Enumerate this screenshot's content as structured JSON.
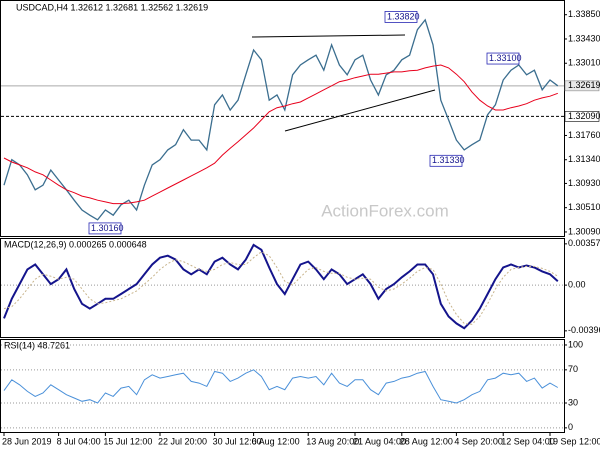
{
  "chart_data": [
    {
      "type": "line",
      "title": "USDCAD,H4 1.32612 1.32681 1.32562 1.32619",
      "watermark": "ActionForex.com",
      "categories": [
        "28 Jun 2019",
        null,
        null,
        null,
        null,
        null,
        null,
        "8 Jul 04:00",
        null,
        null,
        null,
        null,
        null,
        "15 Jul 12:00",
        null,
        null,
        null,
        null,
        null,
        null,
        "22 Jul 20:00",
        null,
        null,
        null,
        null,
        null,
        null,
        "30 Jul 12:00",
        null,
        null,
        null,
        null,
        "6 Aug 12:00",
        null,
        null,
        null,
        null,
        null,
        null,
        "13 Aug 20:00",
        null,
        null,
        null,
        null,
        null,
        "21 Aug 04:00",
        null,
        null,
        null,
        null,
        null,
        "28 Aug 12:00",
        null,
        null,
        null,
        null,
        null,
        null,
        "4 Sep 20:00",
        null,
        null,
        null,
        null,
        null,
        "12 Sep 04:00",
        null,
        null,
        null,
        null,
        null,
        "19 Sep 12:00",
        null
      ],
      "series": [
        {
          "color": "#3b6e8f",
          "values": [
            1.309,
            1.3134,
            1.3125,
            1.3108,
            1.3082,
            1.309,
            1.3116,
            1.3099,
            1.3082,
            1.3064,
            1.3047,
            1.3038,
            1.303,
            1.3047,
            1.3038,
            1.3056,
            1.3064,
            1.3047,
            1.309,
            1.3125,
            1.3134,
            1.3151,
            1.316,
            1.3186,
            1.3168,
            1.3168,
            1.3151,
            1.3229,
            1.3246,
            1.322,
            1.3237,
            1.3281,
            1.3324,
            1.3307,
            1.3237,
            1.3246,
            1.322,
            1.3281,
            1.3298,
            1.3307,
            1.3315,
            1.3289,
            1.3333,
            1.3298,
            1.3281,
            1.3307,
            1.3315,
            1.3272,
            1.3246,
            1.3281,
            1.3289,
            1.3307,
            1.3315,
            1.3359,
            1.3376,
            1.3333,
            1.3237,
            1.3203,
            1.3168,
            1.3151,
            1.316,
            1.3168,
            1.3212,
            1.3229,
            1.3272,
            1.3289,
            1.3298,
            1.3281,
            1.3289,
            1.3255,
            1.3272,
            1.3262
          ]
        },
        {
          "color": "#e8001c",
          "values": [
            1.3137,
            1.313,
            1.3125,
            1.312,
            1.3113,
            1.3108,
            1.3099,
            1.309,
            1.3082,
            1.3077,
            1.3071,
            1.3068,
            1.3064,
            1.3061,
            1.3058,
            1.3058,
            1.3059,
            1.3061,
            1.3064,
            1.3071,
            1.3078,
            1.3085,
            1.3092,
            1.3099,
            1.3106,
            1.3113,
            1.312,
            1.3128,
            1.3142,
            1.3154,
            1.3165,
            1.3177,
            1.3189,
            1.3203,
            1.3217,
            1.3224,
            1.3227,
            1.3231,
            1.3234,
            1.3241,
            1.3248,
            1.3255,
            1.3262,
            1.3269,
            1.3272,
            1.3276,
            1.3279,
            1.3282,
            1.3282,
            1.3284,
            1.3286,
            1.3286,
            1.3288,
            1.3289,
            1.3293,
            1.3296,
            1.3298,
            1.3293,
            1.3282,
            1.3269,
            1.3251,
            1.3237,
            1.3227,
            1.322,
            1.322,
            1.3224,
            1.3227,
            1.3231,
            1.3237,
            1.3241,
            1.3244,
            1.3249
          ]
        }
      ],
      "ylim": [
        1.3002,
        1.3407
      ],
      "yticks": [
        {
          "value": 1.3385,
          "label": "1.33850"
        },
        {
          "value": 1.3343,
          "label": "1.33430"
        },
        {
          "value": 1.3301,
          "label": "1.33010"
        },
        {
          "value": 1.3176,
          "label": "1.31760"
        },
        {
          "value": 1.3134,
          "label": "1.31340"
        },
        {
          "value": 1.3093,
          "label": "1.30930"
        },
        {
          "value": 1.3051,
          "label": "1.30510"
        },
        {
          "value": 1.3009,
          "label": "1.30090"
        }
      ],
      "last_price": {
        "value": 1.32619,
        "label": "1.32619"
      },
      "hline": {
        "value": 1.3209,
        "label": "1.32090"
      },
      "annotations": [
        {
          "value": 1.3382,
          "label": "1.33820"
        },
        {
          "value": 1.331,
          "label": "1.33100"
        },
        {
          "value": 1.3133,
          "label": "1.31330"
        },
        {
          "value": 1.3016,
          "label": "1.30160"
        }
      ]
    },
    {
      "type": "line",
      "title": "MACD(12,26,9) 0.000265 0.000648",
      "series": [
        {
          "color": "#14148c",
          "values": [
            -0.00289,
            -0.00119,
            9e-05,
            0.00136,
            0.00179,
            0.00094,
            9e-05,
            0.00051,
            0.00136,
            -0.00034,
            -0.00162,
            -0.00204,
            -0.00162,
            -0.00119,
            -0.00119,
            -0.00077,
            -0.00034,
            9e-05,
            0.00094,
            0.00179,
            0.00238,
            0.00255,
            0.00221,
            0.00136,
            0.00094,
            0.00136,
            0.00094,
            0.00204,
            0.00238,
            0.00179,
            0.00136,
            0.00221,
            0.00349,
            0.00306,
            0.00153,
            9e-05,
            -0.00077,
            0.00051,
            0.00179,
            0.00204,
            0.00136,
            0.00051,
            0.00136,
            0.00094,
            9e-05,
            0.00051,
            0.00094,
            9e-05,
            -0.00119,
            -0.00034,
            9e-05,
            0.00068,
            0.00119,
            0.00179,
            0.00179,
            0.00094,
            -0.00162,
            -0.00272,
            -0.00332,
            -0.00374,
            -0.00306,
            -0.00204,
            -0.00077,
            0.00051,
            0.00153,
            0.00179,
            0.00153,
            0.0017,
            0.00153,
            0.00119,
            0.00094,
            0.00034
          ]
        },
        {
          "color": "#c8b48c",
          "values": [
            -0.00204,
            -0.00187,
            -0.00119,
            -0.00034,
            0.00051,
            0.00094,
            0.00077,
            0.00051,
            0.00068,
            0.00051,
            -0.00034,
            -0.00119,
            -0.00162,
            -0.00153,
            -0.00136,
            -0.00119,
            -0.00085,
            -0.00051,
            9e-05,
            0.00068,
            0.00136,
            0.00187,
            0.00221,
            0.00204,
            0.0017,
            0.00136,
            0.00119,
            0.00136,
            0.00179,
            0.00196,
            0.00179,
            0.00179,
            0.00238,
            0.00289,
            0.00255,
            0.00153,
            0.00034,
            0,
            0.00068,
            0.00136,
            0.00153,
            0.00119,
            0.00102,
            0.00102,
            0.00068,
            0.00051,
            0.0006,
            0.00051,
            -0.00017,
            -0.00051,
            -0.00034,
            9e-05,
            0.0006,
            0.00119,
            0.00153,
            0.00136,
            9e-05,
            -0.00145,
            -0.00255,
            -0.00332,
            -0.0034,
            -0.00272,
            -0.00162,
            -0.00034,
            0.00068,
            0.00136,
            0.00153,
            0.00162,
            0.00162,
            0.00145,
            0.00119,
            0.00077
          ]
        }
      ],
      "ylim": [
        -0.0045,
        0.004
      ],
      "yticks": [
        0.003579,
        {
          "value": 0,
          "label": "0.00"
        },
        -0.003966
      ]
    },
    {
      "type": "line",
      "title": "RSI(14) 48.7261",
      "series": [
        {
          "color": "#4a90d9",
          "values": [
            45,
            58,
            52,
            44,
            38,
            42,
            52,
            46,
            40,
            36,
            32,
            34,
            30,
            42,
            38,
            48,
            50,
            40,
            58,
            64,
            60,
            62,
            64,
            66,
            56,
            54,
            50,
            68,
            66,
            56,
            60,
            66,
            70,
            62,
            46,
            50,
            46,
            60,
            62,
            60,
            62,
            52,
            66,
            54,
            50,
            58,
            58,
            46,
            40,
            54,
            56,
            60,
            62,
            66,
            68,
            50,
            34,
            32,
            30,
            34,
            40,
            44,
            58,
            60,
            66,
            64,
            66,
            56,
            60,
            48,
            54,
            48.7261
          ]
        }
      ],
      "ylim": [
        -5,
        106
      ],
      "yticks": [
        100,
        70,
        30,
        0
      ],
      "grid": true
    }
  ]
}
